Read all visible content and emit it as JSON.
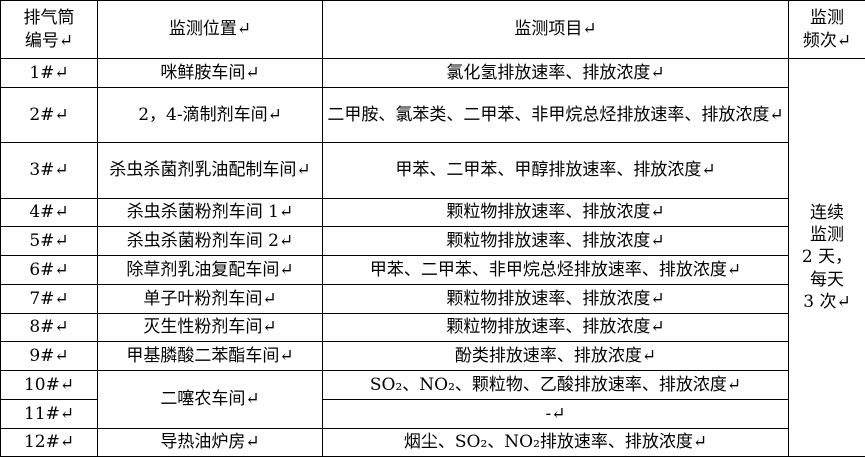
{
  "table": {
    "header": [
      [
        "排气筒",
        "编号↵"
      ],
      "监测位置↵",
      "监测项目↵",
      [
        "监测",
        "频次↵"
      ]
    ],
    "rows": [
      {
        "no": "1#↵",
        "location": "咪鲜胺车间↵",
        "items": "氯化氢排放速率、排放浓度↵"
      },
      {
        "no": "2#↵",
        "location": "2，4-滴制剂车间↵",
        "items": "二甲胺、氯苯类、二甲苯、非甲烷总烃排放速率、排放浓度↵"
      },
      {
        "no": "3#↵",
        "location": "杀虫杀菌剂乳油配制车间↵",
        "items": "甲苯、二甲苯、甲醇排放速率、排放浓度↵"
      },
      {
        "no": "4#↵",
        "location": "杀虫杀菌粉剂车间 1↵",
        "items": "颗粒物排放速率、排放浓度↵"
      },
      {
        "no": "5#↵",
        "location": "杀虫杀菌粉剂车间 2↵",
        "items": "颗粒物排放速率、排放浓度↵"
      },
      {
        "no": "6#↵",
        "location": "除草剂乳油复配车间↵",
        "items": "甲苯、二甲苯、非甲烷总烃排放速率、排放浓度↵"
      },
      {
        "no": "7#↵",
        "location": "单子叶粉剂车间↵",
        "items": "颗粒物排放速率、排放浓度↵"
      },
      {
        "no": "8#↵",
        "location": "灭生性粉剂车间↵",
        "items": "颗粒物排放速率、排放浓度↵"
      },
      {
        "no": "9#↵",
        "location": "甲基膦酸二苯酯车间↵",
        "items": "酚类排放速率、排放浓度↵"
      },
      {
        "no": "10#↵",
        "location": "二噻农车间↵",
        "items": "SO₂、NO₂、颗粒物、乙酸排放速率、排放浓度↵"
      },
      {
        "no": "11#↵",
        "items": "-↵"
      },
      {
        "no": "12#↵",
        "location": "导热油炉房↵",
        "items": "烟尘、SO₂、NO₂排放速率、排放浓度↵"
      }
    ],
    "frequency": [
      "连续",
      "监测",
      "2 天，",
      "每天",
      "3 次↵"
    ]
  }
}
